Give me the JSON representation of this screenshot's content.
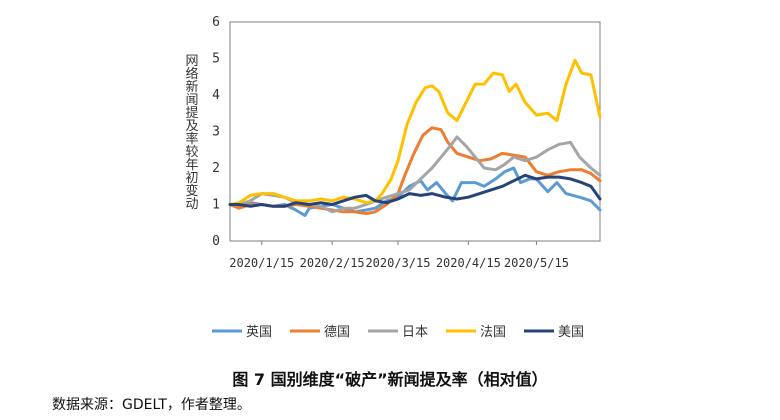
{
  "chart_data": {
    "type": "line",
    "ylabel": "网络新闻提及率较年初变动",
    "ylim": [
      0,
      6
    ],
    "yticks": [
      0,
      1,
      2,
      3,
      4,
      5,
      6
    ],
    "x_range": [
      "2020-01-01",
      "2020-06-12"
    ],
    "xticks": [
      "2020/1/15",
      "2020/2/15",
      "2020/3/15",
      "2020/4/15",
      "2020/5/15"
    ],
    "grid": false,
    "legend_position": "bottom",
    "series": [
      {
        "name": "英国",
        "color": "#5b9bd5",
        "points": [
          [
            "2020-01-01",
            1.0
          ],
          [
            "2020-01-05",
            0.95
          ],
          [
            "2020-01-10",
            1.05
          ],
          [
            "2020-01-15",
            1.0
          ],
          [
            "2020-01-20",
            0.95
          ],
          [
            "2020-01-25",
            1.0
          ],
          [
            "2020-01-30",
            0.85
          ],
          [
            "2020-02-03",
            0.7
          ],
          [
            "2020-02-05",
            0.9
          ],
          [
            "2020-02-10",
            0.95
          ],
          [
            "2020-02-15",
            1.0
          ],
          [
            "2020-02-20",
            0.9
          ],
          [
            "2020-02-25",
            0.8
          ],
          [
            "2020-03-01",
            0.85
          ],
          [
            "2020-03-05",
            0.9
          ],
          [
            "2020-03-10",
            1.1
          ],
          [
            "2020-03-15",
            1.2
          ],
          [
            "2020-03-20",
            1.5
          ],
          [
            "2020-03-25",
            1.65
          ],
          [
            "2020-03-28",
            1.4
          ],
          [
            "2020-04-01",
            1.6
          ],
          [
            "2020-04-05",
            1.3
          ],
          [
            "2020-04-08",
            1.1
          ],
          [
            "2020-04-12",
            1.6
          ],
          [
            "2020-04-18",
            1.6
          ],
          [
            "2020-04-22",
            1.5
          ],
          [
            "2020-04-27",
            1.7
          ],
          [
            "2020-05-01",
            1.9
          ],
          [
            "2020-05-05",
            2.0
          ],
          [
            "2020-05-08",
            1.6
          ],
          [
            "2020-05-12",
            1.7
          ],
          [
            "2020-05-15",
            1.7
          ],
          [
            "2020-05-20",
            1.35
          ],
          [
            "2020-05-24",
            1.6
          ],
          [
            "2020-05-28",
            1.3
          ],
          [
            "2020-06-03",
            1.2
          ],
          [
            "2020-06-08",
            1.1
          ],
          [
            "2020-06-12",
            0.85
          ]
        ]
      },
      {
        "name": "德国",
        "color": "#ed7d31",
        "points": [
          [
            "2020-01-01",
            1.0
          ],
          [
            "2020-01-05",
            0.9
          ],
          [
            "2020-01-10",
            1.0
          ],
          [
            "2020-01-15",
            1.0
          ],
          [
            "2020-01-20",
            0.95
          ],
          [
            "2020-01-25",
            0.95
          ],
          [
            "2020-01-30",
            1.0
          ],
          [
            "2020-02-05",
            0.95
          ],
          [
            "2020-02-10",
            0.9
          ],
          [
            "2020-02-15",
            0.85
          ],
          [
            "2020-02-20",
            0.8
          ],
          [
            "2020-02-25",
            0.8
          ],
          [
            "2020-03-01",
            0.75
          ],
          [
            "2020-03-05",
            0.8
          ],
          [
            "2020-03-10",
            1.0
          ],
          [
            "2020-03-15",
            1.3
          ],
          [
            "2020-03-18",
            1.8
          ],
          [
            "2020-03-22",
            2.4
          ],
          [
            "2020-03-26",
            2.9
          ],
          [
            "2020-03-30",
            3.1
          ],
          [
            "2020-04-03",
            3.05
          ],
          [
            "2020-04-06",
            2.7
          ],
          [
            "2020-04-10",
            2.4
          ],
          [
            "2020-04-15",
            2.3
          ],
          [
            "2020-04-20",
            2.2
          ],
          [
            "2020-04-25",
            2.25
          ],
          [
            "2020-04-30",
            2.4
          ],
          [
            "2020-05-05",
            2.35
          ],
          [
            "2020-05-10",
            2.3
          ],
          [
            "2020-05-15",
            1.9
          ],
          [
            "2020-05-20",
            1.8
          ],
          [
            "2020-05-25",
            1.9
          ],
          [
            "2020-05-30",
            1.95
          ],
          [
            "2020-06-04",
            1.95
          ],
          [
            "2020-06-08",
            1.85
          ],
          [
            "2020-06-12",
            1.65
          ]
        ]
      },
      {
        "name": "日本",
        "color": "#a5a5a5",
        "points": [
          [
            "2020-01-01",
            1.0
          ],
          [
            "2020-01-05",
            1.0
          ],
          [
            "2020-01-10",
            1.1
          ],
          [
            "2020-01-15",
            1.3
          ],
          [
            "2020-01-20",
            1.25
          ],
          [
            "2020-01-25",
            1.2
          ],
          [
            "2020-01-30",
            1.05
          ],
          [
            "2020-02-05",
            1.0
          ],
          [
            "2020-02-10",
            0.95
          ],
          [
            "2020-02-15",
            0.8
          ],
          [
            "2020-02-20",
            0.9
          ],
          [
            "2020-02-25",
            0.9
          ],
          [
            "2020-03-01",
            1.0
          ],
          [
            "2020-03-05",
            1.1
          ],
          [
            "2020-03-10",
            1.2
          ],
          [
            "2020-03-15",
            1.3
          ],
          [
            "2020-03-20",
            1.4
          ],
          [
            "2020-03-25",
            1.7
          ],
          [
            "2020-03-30",
            2.0
          ],
          [
            "2020-04-03",
            2.3
          ],
          [
            "2020-04-07",
            2.6
          ],
          [
            "2020-04-10",
            2.85
          ],
          [
            "2020-04-14",
            2.6
          ],
          [
            "2020-04-18",
            2.3
          ],
          [
            "2020-04-22",
            2.0
          ],
          [
            "2020-04-27",
            1.95
          ],
          [
            "2020-05-01",
            2.1
          ],
          [
            "2020-05-05",
            2.3
          ],
          [
            "2020-05-10",
            2.2
          ],
          [
            "2020-05-15",
            2.3
          ],
          [
            "2020-05-20",
            2.5
          ],
          [
            "2020-05-25",
            2.65
          ],
          [
            "2020-05-30",
            2.7
          ],
          [
            "2020-06-03",
            2.3
          ],
          [
            "2020-06-08",
            2.0
          ],
          [
            "2020-06-12",
            1.8
          ]
        ]
      },
      {
        "name": "法国",
        "color": "#ffc000",
        "points": [
          [
            "2020-01-01",
            1.0
          ],
          [
            "2020-01-05",
            1.05
          ],
          [
            "2020-01-10",
            1.25
          ],
          [
            "2020-01-15",
            1.3
          ],
          [
            "2020-01-20",
            1.3
          ],
          [
            "2020-01-25",
            1.2
          ],
          [
            "2020-01-30",
            1.1
          ],
          [
            "2020-02-05",
            1.1
          ],
          [
            "2020-02-10",
            1.15
          ],
          [
            "2020-02-15",
            1.1
          ],
          [
            "2020-02-20",
            1.2
          ],
          [
            "2020-02-25",
            1.15
          ],
          [
            "2020-03-01",
            1.05
          ],
          [
            "2020-03-05",
            1.1
          ],
          [
            "2020-03-08",
            1.3
          ],
          [
            "2020-03-12",
            1.7
          ],
          [
            "2020-03-15",
            2.2
          ],
          [
            "2020-03-19",
            3.2
          ],
          [
            "2020-03-23",
            3.8
          ],
          [
            "2020-03-27",
            4.2
          ],
          [
            "2020-03-30",
            4.25
          ],
          [
            "2020-04-02",
            4.1
          ],
          [
            "2020-04-06",
            3.5
          ],
          [
            "2020-04-10",
            3.3
          ],
          [
            "2020-04-14",
            3.8
          ],
          [
            "2020-04-18",
            4.3
          ],
          [
            "2020-04-22",
            4.3
          ],
          [
            "2020-04-26",
            4.6
          ],
          [
            "2020-04-30",
            4.55
          ],
          [
            "2020-05-03",
            4.1
          ],
          [
            "2020-05-06",
            4.3
          ],
          [
            "2020-05-10",
            3.8
          ],
          [
            "2020-05-15",
            3.45
          ],
          [
            "2020-05-20",
            3.5
          ],
          [
            "2020-05-24",
            3.3
          ],
          [
            "2020-05-28",
            4.3
          ],
          [
            "2020-06-01",
            4.95
          ],
          [
            "2020-06-04",
            4.6
          ],
          [
            "2020-06-08",
            4.55
          ],
          [
            "2020-06-12",
            3.4
          ]
        ]
      },
      {
        "name": "美国",
        "color": "#264478",
        "points": [
          [
            "2020-01-01",
            1.0
          ],
          [
            "2020-01-05",
            1.0
          ],
          [
            "2020-01-10",
            0.95
          ],
          [
            "2020-01-15",
            1.0
          ],
          [
            "2020-01-20",
            0.95
          ],
          [
            "2020-01-25",
            0.95
          ],
          [
            "2020-01-30",
            1.05
          ],
          [
            "2020-02-05",
            1.0
          ],
          [
            "2020-02-10",
            1.05
          ],
          [
            "2020-02-15",
            1.0
          ],
          [
            "2020-02-20",
            1.1
          ],
          [
            "2020-02-25",
            1.2
          ],
          [
            "2020-03-01",
            1.25
          ],
          [
            "2020-03-05",
            1.1
          ],
          [
            "2020-03-10",
            1.05
          ],
          [
            "2020-03-15",
            1.15
          ],
          [
            "2020-03-20",
            1.3
          ],
          [
            "2020-03-25",
            1.25
          ],
          [
            "2020-03-30",
            1.3
          ],
          [
            "2020-04-05",
            1.2
          ],
          [
            "2020-04-10",
            1.15
          ],
          [
            "2020-04-15",
            1.2
          ],
          [
            "2020-04-20",
            1.3
          ],
          [
            "2020-04-25",
            1.4
          ],
          [
            "2020-04-30",
            1.5
          ],
          [
            "2020-05-05",
            1.65
          ],
          [
            "2020-05-10",
            1.8
          ],
          [
            "2020-05-15",
            1.7
          ],
          [
            "2020-05-20",
            1.75
          ],
          [
            "2020-05-25",
            1.75
          ],
          [
            "2020-05-30",
            1.7
          ],
          [
            "2020-06-04",
            1.6
          ],
          [
            "2020-06-08",
            1.5
          ],
          [
            "2020-06-12",
            1.15
          ]
        ]
      }
    ]
  },
  "caption": "图 7 国别维度“破产”新闻提及率（相对值）",
  "source": "数据来源：GDELT，作者整理。"
}
